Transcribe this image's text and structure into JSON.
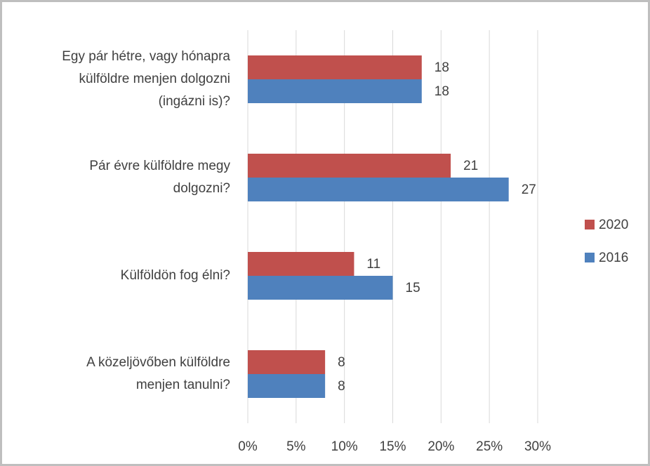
{
  "chart_data": {
    "type": "bar",
    "orientation": "horizontal",
    "categories": [
      "Egy pár hétre, vagy hónapra\nkülföldre menjen dolgozni\n(ingázni is)?",
      "Pár évre külföldre megy\ndolgozni?",
      "Külföldön fog élni?",
      "A közeljövőben külföldre\nmenjen tanulni?"
    ],
    "series": [
      {
        "name": "2020",
        "color": "#c0504d",
        "values": [
          18,
          21,
          11,
          8
        ]
      },
      {
        "name": "2016",
        "color": "#4f81bd",
        "values": [
          18,
          27,
          15,
          8
        ]
      }
    ],
    "xlim": [
      0,
      30
    ],
    "xticks": [
      {
        "value": 0,
        "label": "0%"
      },
      {
        "value": 5,
        "label": "5%"
      },
      {
        "value": 10,
        "label": "10%"
      },
      {
        "value": 15,
        "label": "15%"
      },
      {
        "value": 20,
        "label": "20%"
      },
      {
        "value": 25,
        "label": "25%"
      },
      {
        "value": 30,
        "label": "30%"
      }
    ],
    "grid": true,
    "legend": "right"
  }
}
